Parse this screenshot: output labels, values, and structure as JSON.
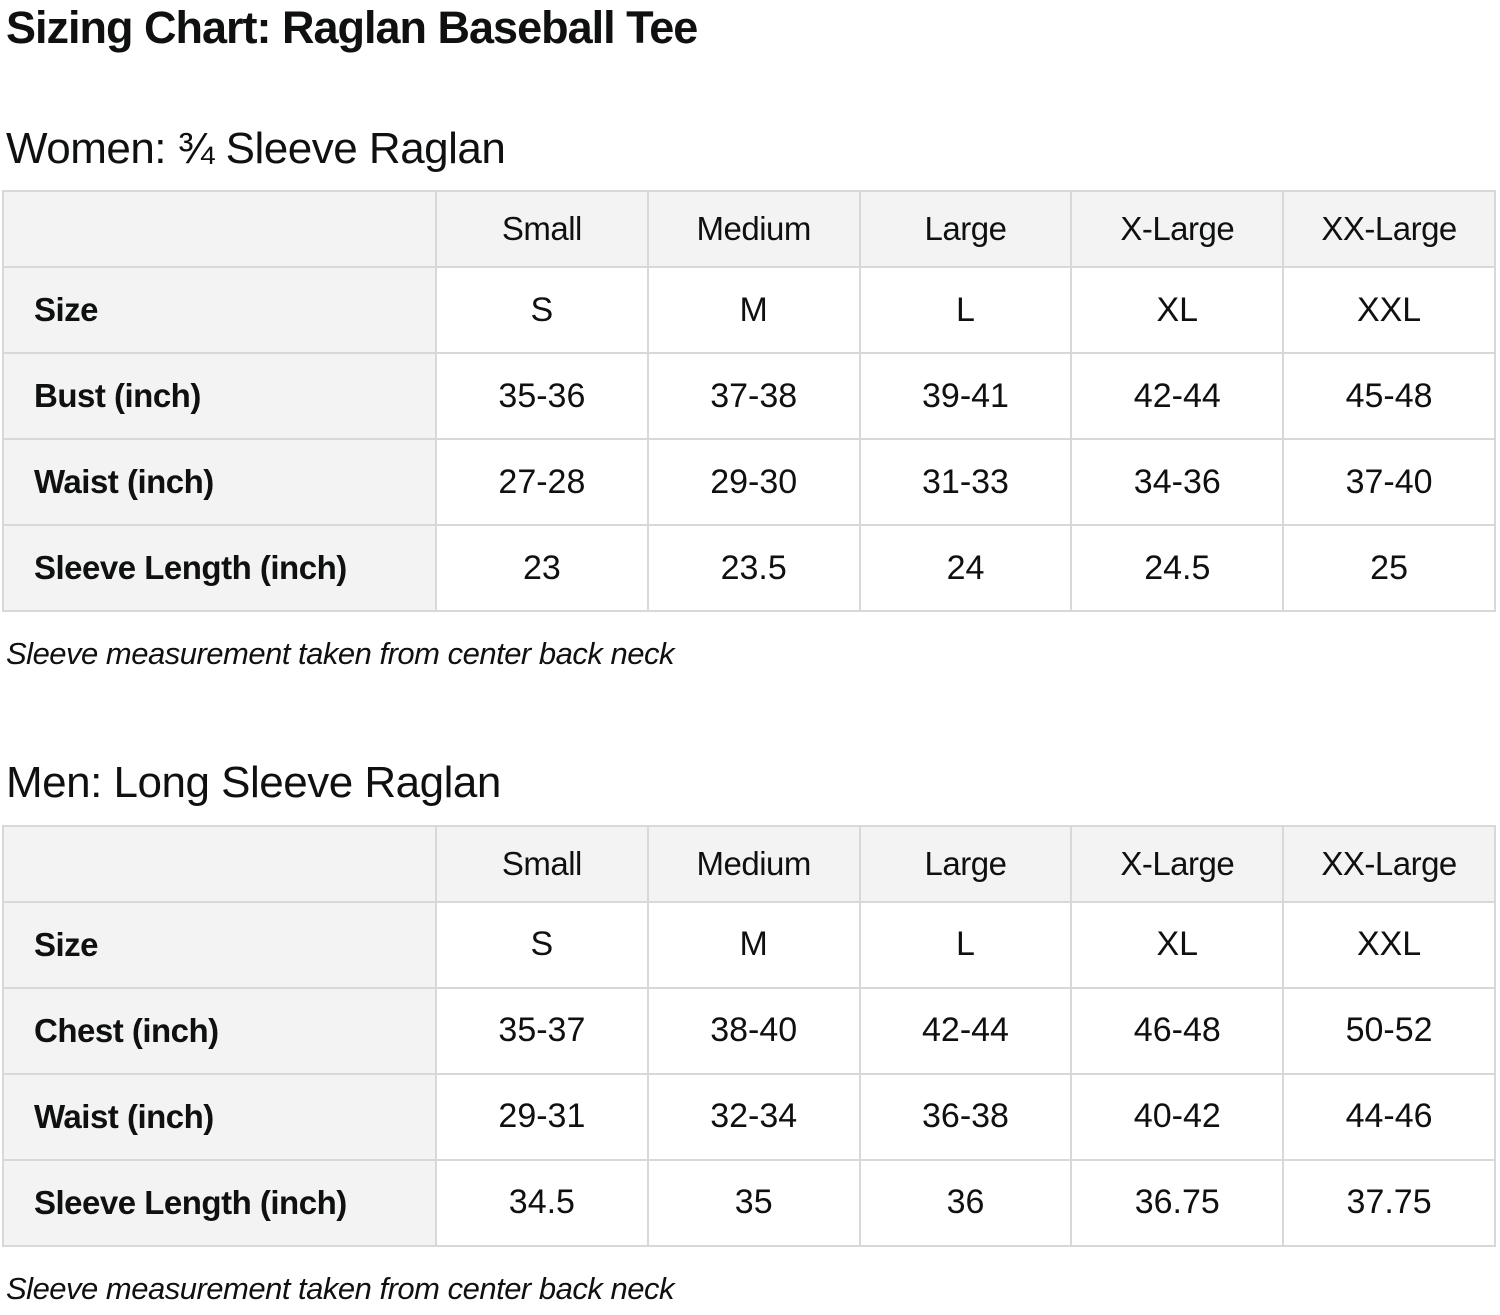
{
  "page": {
    "title": "Sizing Chart: Raglan Baseball Tee"
  },
  "colors": {
    "table_header_bg": "#f3f3f3",
    "table_border": "#d8d8d8",
    "text": "#0f1111",
    "background": "#ffffff"
  },
  "sections": [
    {
      "heading": "Women: ¾ Sleeve Raglan",
      "note": "Sleeve measurement taken from center back neck",
      "table": {
        "column_headers": [
          "",
          "Small",
          "Medium",
          "Large",
          "X-Large",
          "XX-Large"
        ],
        "rows": [
          {
            "label": "Size",
            "values": [
              "S",
              "M",
              "L",
              "XL",
              "XXL"
            ]
          },
          {
            "label": "Bust (inch)",
            "values": [
              "35-36",
              "37-38",
              "39-41",
              "42-44",
              "45-48"
            ]
          },
          {
            "label": "Waist (inch)",
            "values": [
              "27-28",
              "29-30",
              "31-33",
              "34-36",
              "37-40"
            ]
          },
          {
            "label": "Sleeve Length (inch)",
            "values": [
              "23",
              "23.5",
              "24",
              "24.5",
              "25"
            ]
          }
        ]
      }
    },
    {
      "heading": "Men: Long Sleeve Raglan",
      "note": "Sleeve measurement taken from center back neck",
      "table": {
        "column_headers": [
          "",
          "Small",
          "Medium",
          "Large",
          "X-Large",
          "XX-Large"
        ],
        "rows": [
          {
            "label": "Size",
            "values": [
              "S",
              "M",
              "L",
              "XL",
              "XXL"
            ]
          },
          {
            "label": "Chest (inch)",
            "values": [
              "35-37",
              "38-40",
              "42-44",
              "46-48",
              "50-52"
            ]
          },
          {
            "label": "Waist (inch)",
            "values": [
              "29-31",
              "32-34",
              "36-38",
              "40-42",
              "44-46"
            ]
          },
          {
            "label": "Sleeve Length (inch)",
            "values": [
              "34.5",
              "35",
              "36",
              "36.75",
              "37.75"
            ]
          }
        ]
      }
    }
  ]
}
